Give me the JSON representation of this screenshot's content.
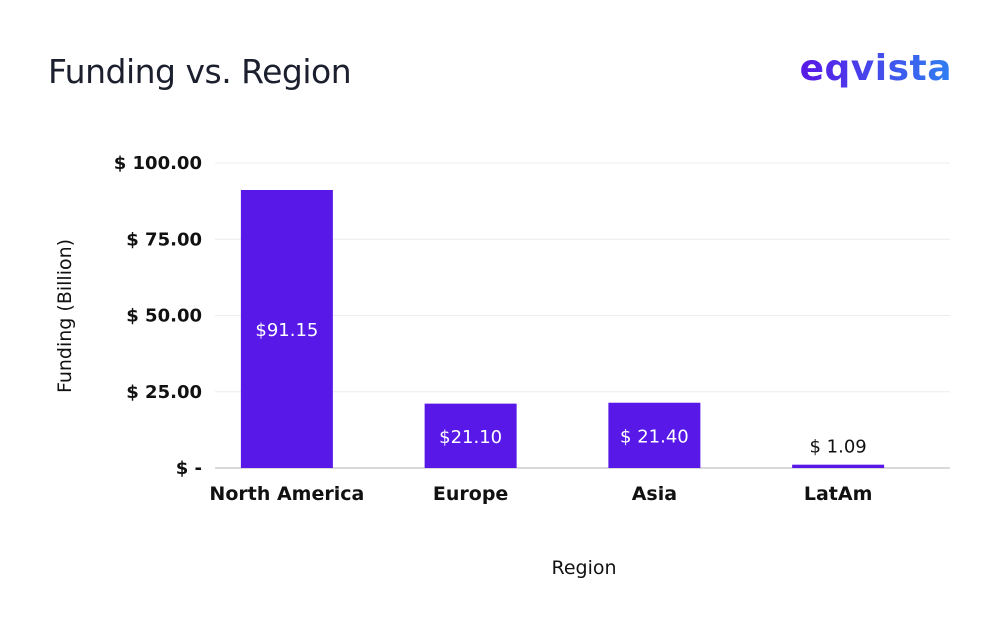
{
  "header": {
    "title": "Funding vs. Region",
    "logo": "eqvista"
  },
  "chart_data": {
    "type": "bar",
    "title": "Funding vs. Region",
    "xlabel": "Region",
    "ylabel": "Funding (Billion)",
    "categories": [
      "North America",
      "Europe",
      "Asia",
      "LatAm"
    ],
    "values": [
      91.15,
      21.1,
      21.4,
      1.09
    ],
    "data_labels": [
      "$91.15",
      "$21.10",
      "$ 21.40",
      "$ 1.09"
    ],
    "ylim": [
      0,
      100
    ],
    "yticks": [
      0,
      25,
      50,
      75,
      100
    ],
    "ytick_labels": [
      "$ -",
      "$ 25.00",
      "$ 50.00",
      "$ 75.00",
      "$ 100.00"
    ],
    "grid": true,
    "bar_color": "#5819e8",
    "grid_color": "#ececec"
  }
}
